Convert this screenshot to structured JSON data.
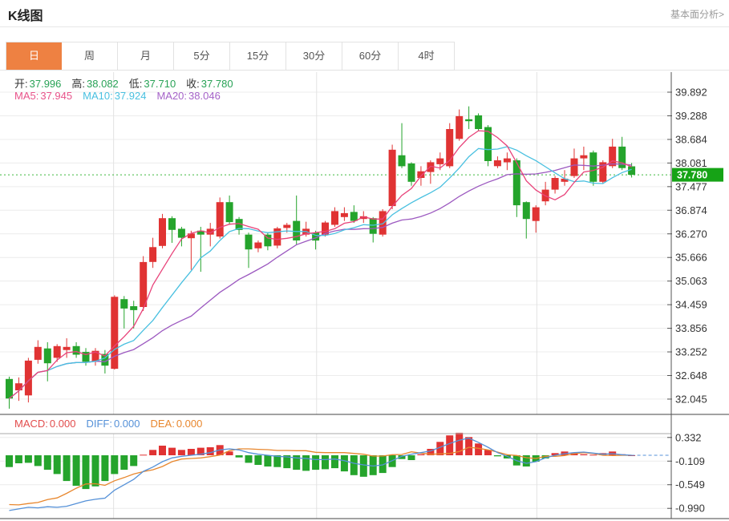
{
  "header": {
    "title": "K线图",
    "link": "基本面分析>"
  },
  "tabs": {
    "items": [
      "日",
      "周",
      "月",
      "5分",
      "15分",
      "30分",
      "60分",
      "4时"
    ],
    "selected_index": 0
  },
  "legend": {
    "ohlc": [
      {
        "label": "开:",
        "value": "37.996"
      },
      {
        "label": "高:",
        "value": "38.082"
      },
      {
        "label": "低:",
        "value": "37.710"
      },
      {
        "label": "收:",
        "value": "37.780"
      }
    ],
    "ma": [
      {
        "label": "MA5:",
        "value": "37.945",
        "color": "#e8538a"
      },
      {
        "label": "MA10:",
        "value": "37.924",
        "color": "#49c0e0"
      },
      {
        "label": "MA20:",
        "value": "38.046",
        "color": "#a563c8"
      }
    ],
    "macd": [
      {
        "label": "MACD:",
        "value": "0.000",
        "color": "#e24c4c"
      },
      {
        "label": "DIFF:",
        "value": "0.000",
        "color": "#5591d8"
      },
      {
        "label": "DEA:",
        "value": "0.000",
        "color": "#e8872e"
      }
    ]
  },
  "colors": {
    "up": "#e03333",
    "down": "#25a42c",
    "tab_active": "#ee8142",
    "ohlc_value": "#28a256",
    "price_tag_bg": "#16a316",
    "price_tag_text": "#ffffff",
    "price_line": "#3cb83c",
    "ma5": "#e8437a",
    "ma10": "#49c0e0",
    "ma20": "#9c59c0",
    "diff_line": "#5591d8",
    "dea_line": "#e8872e",
    "grid": "#ececec",
    "vgrid": "#e2e2e2",
    "axis": "#555555",
    "tick_text": "#333333",
    "separator": "#444444"
  },
  "chart_data": {
    "type": "candlestick",
    "title": "K线图",
    "legend_position": "top-left",
    "grid": true,
    "main": {
      "y_ticks": [
        39.892,
        39.288,
        38.684,
        38.081,
        37.477,
        36.874,
        36.27,
        35.666,
        35.063,
        34.459,
        33.856,
        33.252,
        32.648,
        32.045
      ],
      "y_range": [
        31.6,
        40.4
      ],
      "last_price": 37.78,
      "last_price_label": "37.780",
      "ohlc_last": {
        "open": 37.996,
        "high": 38.082,
        "low": 37.71,
        "close": 37.78
      },
      "ma_periods": [
        5,
        10,
        20
      ],
      "ma_last_values": {
        "MA5": 37.945,
        "MA10": 37.924,
        "MA20": 38.046
      },
      "vline_indices": [
        10.9,
        32.1,
        55.1
      ],
      "candles": [
        [
          32.56,
          32.62,
          31.8,
          32.06
        ],
        [
          32.27,
          32.6,
          32.0,
          32.45
        ],
        [
          32.14,
          33.1,
          31.96,
          33.03
        ],
        [
          33.05,
          33.55,
          32.95,
          33.38
        ],
        [
          33.34,
          33.5,
          32.5,
          32.96
        ],
        [
          33.1,
          33.45,
          33.0,
          33.4
        ],
        [
          33.3,
          33.6,
          33.1,
          33.38
        ],
        [
          33.4,
          33.5,
          33.1,
          33.18
        ],
        [
          33.25,
          33.35,
          32.9,
          33.0
        ],
        [
          33.0,
          33.35,
          32.9,
          33.28
        ],
        [
          33.2,
          33.3,
          32.7,
          32.9
        ],
        [
          32.82,
          34.7,
          32.8,
          34.66
        ],
        [
          34.6,
          34.68,
          33.85,
          34.36
        ],
        [
          34.42,
          34.56,
          33.85,
          34.32
        ],
        [
          34.4,
          35.7,
          34.3,
          35.55
        ],
        [
          35.55,
          36.17,
          35.4,
          35.93
        ],
        [
          35.96,
          36.78,
          35.9,
          36.67
        ],
        [
          36.67,
          36.72,
          36.04,
          36.37
        ],
        [
          36.4,
          36.45,
          35.95,
          36.17
        ],
        [
          36.16,
          36.35,
          35.35,
          36.28
        ],
        [
          36.35,
          36.45,
          35.3,
          36.25
        ],
        [
          36.25,
          36.55,
          35.95,
          36.4
        ],
        [
          36.2,
          37.2,
          36.15,
          37.08
        ],
        [
          37.08,
          37.25,
          36.5,
          36.57
        ],
        [
          36.65,
          36.7,
          36.25,
          36.37
        ],
        [
          36.25,
          36.3,
          35.4,
          35.87
        ],
        [
          35.9,
          36.1,
          35.8,
          36.05
        ],
        [
          36.25,
          36.3,
          35.85,
          35.95
        ],
        [
          35.97,
          36.45,
          35.9,
          36.41
        ],
        [
          36.42,
          36.55,
          36.3,
          36.5
        ],
        [
          36.6,
          37.25,
          36.0,
          36.1
        ],
        [
          36.25,
          36.58,
          36.2,
          36.4
        ],
        [
          36.3,
          36.35,
          35.87,
          36.1
        ],
        [
          36.25,
          36.6,
          36.2,
          36.56
        ],
        [
          36.5,
          36.95,
          36.45,
          36.85
        ],
        [
          36.7,
          36.95,
          36.6,
          36.8
        ],
        [
          36.83,
          37.0,
          36.55,
          36.6
        ],
        [
          36.65,
          36.85,
          36.55,
          36.72
        ],
        [
          36.67,
          36.7,
          36.05,
          36.27
        ],
        [
          36.25,
          36.9,
          36.2,
          36.85
        ],
        [
          36.98,
          38.55,
          36.9,
          38.42
        ],
        [
          38.28,
          39.1,
          37.95,
          38.0
        ],
        [
          38.07,
          38.1,
          37.5,
          37.6
        ],
        [
          37.7,
          38.0,
          37.5,
          37.87
        ],
        [
          37.85,
          38.15,
          37.55,
          38.1
        ],
        [
          38.05,
          38.35,
          37.9,
          38.2
        ],
        [
          38.0,
          39.1,
          37.95,
          38.95
        ],
        [
          38.7,
          39.45,
          38.65,
          39.28
        ],
        [
          39.2,
          39.53,
          38.95,
          39.15
        ],
        [
          39.3,
          39.35,
          38.9,
          38.95
        ],
        [
          39.0,
          39.05,
          38.0,
          38.13
        ],
        [
          38.0,
          38.25,
          37.95,
          38.15
        ],
        [
          38.1,
          38.35,
          37.9,
          38.2
        ],
        [
          38.15,
          38.2,
          36.7,
          37.0
        ],
        [
          37.08,
          37.1,
          36.15,
          36.65
        ],
        [
          36.6,
          37.0,
          36.3,
          36.95
        ],
        [
          37.1,
          37.6,
          37.0,
          37.4
        ],
        [
          37.4,
          37.75,
          37.3,
          37.7
        ],
        [
          37.6,
          37.9,
          37.5,
          37.68
        ],
        [
          37.75,
          38.45,
          37.7,
          38.2
        ],
        [
          38.2,
          38.5,
          37.9,
          38.28
        ],
        [
          38.35,
          38.4,
          37.5,
          37.6
        ],
        [
          37.6,
          38.15,
          37.55,
          38.1
        ],
        [
          38.0,
          38.7,
          37.95,
          38.5
        ],
        [
          38.5,
          38.75,
          37.9,
          37.95
        ],
        [
          37.996,
          38.082,
          37.71,
          37.78
        ]
      ]
    },
    "macd": {
      "y_ticks": [
        0.332,
        -0.109,
        -0.549,
        -0.99
      ],
      "last_values": {
        "macd": 0.0,
        "diff": 0.0,
        "dea": 0.0
      },
      "hist": [
        -0.22,
        -0.15,
        -0.14,
        -0.2,
        -0.27,
        -0.35,
        -0.48,
        -0.57,
        -0.63,
        -0.58,
        -0.48,
        -0.35,
        -0.27,
        -0.2,
        0.01,
        0.1,
        0.18,
        0.14,
        0.1,
        0.12,
        0.14,
        0.15,
        0.19,
        0.07,
        -0.04,
        -0.14,
        -0.18,
        -0.21,
        -0.22,
        -0.24,
        -0.27,
        -0.29,
        -0.27,
        -0.26,
        -0.24,
        -0.3,
        -0.37,
        -0.4,
        -0.37,
        -0.33,
        -0.22,
        -0.07,
        -0.09,
        0.02,
        0.12,
        0.25,
        0.37,
        0.42,
        0.34,
        0.22,
        0.1,
        -0.02,
        -0.06,
        -0.19,
        -0.21,
        -0.12,
        -0.06,
        0.04,
        0.07,
        0.04,
        0.02,
        0.01,
        0.04,
        0.07,
        0.02,
        0.0
      ],
      "diff": [
        -1.03,
        -1.0,
        -0.97,
        -0.98,
        -0.96,
        -0.97,
        -0.95,
        -0.9,
        -0.85,
        -0.82,
        -0.8,
        -0.65,
        -0.55,
        -0.45,
        -0.3,
        -0.22,
        -0.12,
        -0.05,
        -0.02,
        0.0,
        0.02,
        0.05,
        0.1,
        0.12,
        0.1,
        0.05,
        0.02,
        0.0,
        -0.02,
        -0.03,
        -0.05,
        -0.06,
        -0.08,
        -0.08,
        -0.07,
        -0.1,
        -0.15,
        -0.18,
        -0.2,
        -0.18,
        -0.1,
        -0.02,
        0.02,
        0.05,
        0.08,
        0.15,
        0.22,
        0.28,
        0.32,
        0.24,
        0.15,
        0.05,
        -0.02,
        -0.1,
        -0.15,
        -0.12,
        -0.05,
        0.0,
        0.03,
        0.05,
        0.06,
        0.04,
        0.02,
        0.03,
        0.01,
        0.0
      ]
    }
  }
}
